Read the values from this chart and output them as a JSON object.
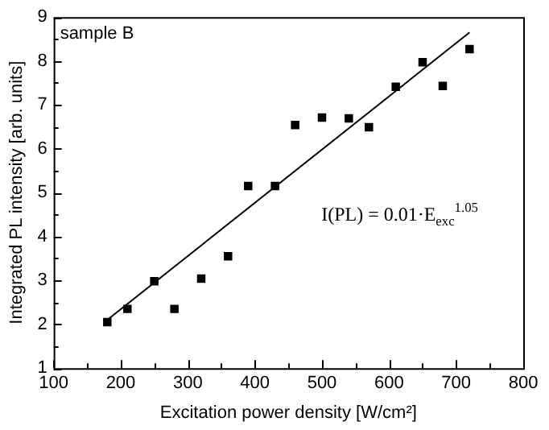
{
  "chart_data": {
    "type": "scatter",
    "xlabel": "Excitation power density [W/cm²]",
    "ylabel": "Integrated PL intensity [arb. units]",
    "annotations": [
      "sample B",
      "I(PL) = 0.01·E$_{exc}$$^{1.05}$"
    ],
    "xlim": [
      100,
      800
    ],
    "ylim": [
      1,
      9
    ],
    "xticks": [
      100,
      {
        "value": 150,
        "label": null
      },
      200,
      {
        "value": 250,
        "label": null
      },
      300,
      {
        "value": 350,
        "label": null
      },
      400,
      {
        "value": 450,
        "label": null
      },
      500,
      {
        "value": 550,
        "label": null
      },
      600,
      {
        "value": 650,
        "label": null
      },
      700,
      {
        "value": 750,
        "label": null
      },
      800
    ],
    "yticks": [
      1,
      {
        "value": 1.5,
        "label": null
      },
      2,
      {
        "value": 2.5,
        "label": null
      },
      3,
      {
        "value": 3.5,
        "label": null
      },
      4,
      {
        "value": 4.5,
        "label": null
      },
      5,
      {
        "value": 5.5,
        "label": null
      },
      6,
      {
        "value": 6.5,
        "label": null
      },
      7,
      {
        "value": 7.5,
        "label": null
      },
      8,
      {
        "value": 8.5,
        "label": null
      },
      9
    ],
    "grid": false,
    "legend": false,
    "marker": "square",
    "series": [
      {
        "color": "#000000",
        "x": [
          180,
          210,
          250,
          280,
          320,
          360,
          390,
          430,
          460,
          500,
          540,
          570,
          610,
          650,
          680,
          720
        ],
        "values": [
          2.05,
          2.35,
          2.98,
          2.35,
          3.04,
          3.55,
          5.15,
          5.15,
          6.54,
          6.71,
          6.69,
          6.49,
          7.41,
          7.97,
          7.43,
          8.27
        ]
      },
      {
        "type": "line",
        "color": "#000000",
        "marker": "none",
        "line_style": "solid",
        "x": [
          180,
          720
        ],
        "values": [
          2.1,
          8.65
        ]
      }
    ]
  }
}
